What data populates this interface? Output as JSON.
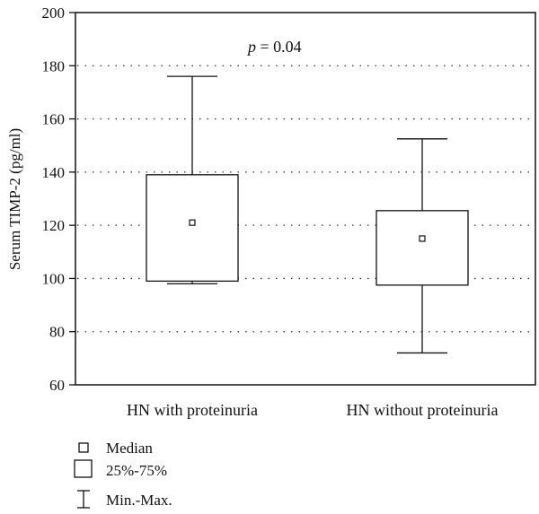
{
  "chart_data": {
    "type": "box",
    "ylabel": "Serum TIMP-2 (pg/ml)",
    "yticks": [
      60,
      80,
      100,
      120,
      140,
      160,
      180,
      200
    ],
    "ylim": [
      60,
      200
    ],
    "grid": "dotted horizontal",
    "categories": [
      "HN with proteinuria",
      "HN without proteinuria"
    ],
    "boxes": [
      {
        "category": "HN with proteinuria",
        "min": 98,
        "q1": 99,
        "median": 121,
        "q3": 139,
        "max": 176
      },
      {
        "category": "HN without proteinuria",
        "min": 72,
        "q1": 97.5,
        "median": 115,
        "q3": 125.5,
        "max": 152.5
      }
    ],
    "annotation": {
      "p_symbol": "p",
      "p_rest": " = 0.04"
    },
    "legend": {
      "placement": "bottom-left",
      "items": [
        {
          "symbol": "median-square",
          "label": "Median"
        },
        {
          "symbol": "box",
          "label": "25%-75%"
        },
        {
          "symbol": "whisker",
          "label": "Min.-Max."
        }
      ]
    }
  }
}
